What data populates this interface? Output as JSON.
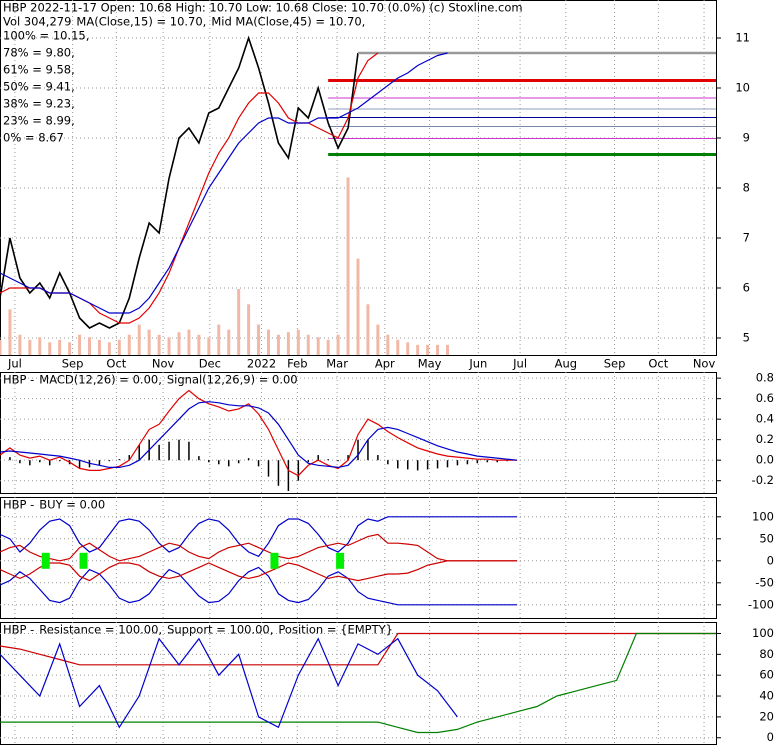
{
  "chart_data": [
    {
      "type": "line",
      "title": "HBP  2022-11-17 Open: 10.68  High: 10.70  Low: 10.68  Close: 10.70 (0.0%)  (c) Stoxline.com",
      "volume_label": "Vol 304,279",
      "xlim": [
        0,
        72
      ],
      "xticks": [
        {
          "value": 1.5,
          "label": "Jul"
        },
        {
          "value": 7.3,
          "label": "Sep"
        },
        {
          "value": 11.7,
          "label": "Oct"
        },
        {
          "value": 16.4,
          "label": "Nov"
        },
        {
          "value": 21.1,
          "label": "Dec"
        },
        {
          "value": 26.3,
          "label": "2022"
        },
        {
          "value": 29.9,
          "label": "Feb"
        },
        {
          "value": 33.9,
          "label": "Mar"
        },
        {
          "value": 38.7,
          "label": "Apr"
        },
        {
          "value": 43.2,
          "label": "May"
        },
        {
          "value": 48.1,
          "label": "Jun"
        },
        {
          "value": 52.3,
          "label": "Jul"
        },
        {
          "value": 56.9,
          "label": "Aug"
        },
        {
          "value": 61.8,
          "label": "Sep"
        },
        {
          "value": 66.2,
          "label": "Oct"
        },
        {
          "value": 70.8,
          "label": "Nov"
        }
      ],
      "ylim": [
        4.66,
        11.76
      ],
      "yticks": [
        5,
        6,
        7,
        8,
        9,
        10,
        11
      ],
      "grid": true,
      "x": [
        0,
        1,
        2,
        3,
        4,
        5,
        6,
        7,
        8,
        9,
        10,
        11,
        12,
        13,
        14,
        15,
        16,
        17,
        18,
        19,
        20,
        21,
        22,
        23,
        24,
        25,
        26,
        27,
        28,
        29,
        30,
        31,
        32,
        33,
        34,
        35,
        36,
        37,
        38,
        39,
        40,
        41,
        42,
        43,
        44,
        45
      ],
      "series": [
        {
          "color": "#000000",
          "values": [
            5.8,
            7.0,
            6.2,
            5.9,
            6.1,
            5.8,
            6.3,
            5.9,
            5.4,
            5.2,
            5.3,
            5.2,
            5.3,
            5.8,
            6.6,
            7.3,
            7.1,
            8.2,
            9.0,
            9.2,
            8.9,
            9.5,
            9.6,
            10.0,
            10.4,
            11.0,
            10.4,
            9.7,
            8.9,
            8.6,
            9.6,
            9.4,
            10.0,
            9.3,
            8.8,
            9.2,
            10.7,
            null,
            null,
            null,
            null,
            null,
            null,
            null,
            null,
            null
          ]
        },
        {
          "name": "MA(Close,15) = 10.70,",
          "color": "#e00000",
          "values": [
            5.9,
            6.0,
            6.0,
            6.0,
            6.0,
            5.9,
            5.9,
            5.9,
            5.8,
            5.7,
            5.5,
            5.4,
            5.3,
            5.3,
            5.4,
            5.6,
            5.9,
            6.3,
            6.8,
            7.3,
            7.8,
            8.3,
            8.7,
            9.0,
            9.4,
            9.7,
            9.9,
            9.9,
            9.7,
            9.4,
            9.3,
            9.3,
            9.2,
            9.1,
            9.0,
            9.4,
            10.2,
            10.55,
            10.7,
            null,
            null,
            null,
            null,
            null,
            null,
            null
          ]
        },
        {
          "name": "Mid MA(Close,45) = 10.70,",
          "color": "#0000cc",
          "values": [
            6.3,
            6.2,
            6.1,
            6.0,
            6.0,
            5.9,
            5.9,
            5.9,
            5.8,
            5.7,
            5.6,
            5.5,
            5.5,
            5.5,
            5.6,
            5.8,
            6.1,
            6.4,
            6.8,
            7.2,
            7.6,
            8.0,
            8.3,
            8.6,
            8.9,
            9.1,
            9.3,
            9.4,
            9.4,
            9.3,
            9.3,
            9.3,
            9.4,
            9.4,
            9.4,
            9.5,
            9.6,
            9.75,
            9.9,
            10.05,
            10.2,
            10.3,
            10.45,
            10.55,
            10.65,
            10.7
          ]
        }
      ],
      "volume": {
        "color": "#f2b8a6",
        "values": [
          300000,
          900000,
          400000,
          300000,
          350000,
          250000,
          300000,
          250000,
          400000,
          350000,
          300000,
          250000,
          300000,
          400000,
          600000,
          500000,
          400000,
          350000,
          450000,
          500000,
          400000,
          350000,
          600000,
          500000,
          1300000,
          1000000,
          600000,
          500000,
          400000,
          450000,
          500000,
          400000,
          350000,
          300000,
          400000,
          3500000,
          1900000,
          1000000,
          600000,
          400000,
          300000,
          250000,
          200000,
          200000,
          200000,
          200000
        ]
      },
      "levels": [
        {
          "label": "100% = 10.15,",
          "value": 10.15,
          "color": "#e00000"
        },
        {
          "label": "78% = 9.80,",
          "value": 9.8,
          "color": "#cc33cc"
        },
        {
          "label": "61% = 9.58,",
          "value": 9.58,
          "color": "#8f9fbf"
        },
        {
          "label": "50% = 9.41,",
          "value": 9.41,
          "color": "#000099"
        },
        {
          "label": "38% = 9.23,",
          "value": 9.23,
          "color": "#7a88aa"
        },
        {
          "label": "23% = 8.99,",
          "value": 8.99,
          "color": "#cc33cc"
        },
        {
          "label": "0% = 8.67",
          "value": 8.67,
          "color": "#008000"
        }
      ]
    },
    {
      "type": "line",
      "label": "HBP -",
      "xlim": [
        0,
        72
      ],
      "ylim": [
        -0.32,
        0.86
      ],
      "yticks": [
        -0.2,
        {
          "value": 0,
          "label": "0.0"
        },
        0.2,
        0.4,
        0.6,
        0.8
      ],
      "grid": true,
      "x": [
        0,
        1,
        2,
        3,
        4,
        5,
        6,
        7,
        8,
        9,
        10,
        11,
        12,
        13,
        14,
        15,
        16,
        17,
        18,
        19,
        20,
        21,
        22,
        23,
        24,
        25,
        26,
        27,
        28,
        29,
        30,
        31,
        32,
        33,
        34,
        35,
        36,
        37,
        38,
        39,
        40,
        41,
        42,
        43,
        44,
        45,
        46,
        47,
        48,
        49,
        50,
        51,
        52
      ],
      "histogram": {
        "color": "#000000",
        "values": [
          -0.03,
          0.03,
          -0.03,
          -0.05,
          -0.02,
          -0.05,
          -0.01,
          -0.04,
          -0.08,
          -0.07,
          -0.05,
          -0.01,
          0.01,
          0.05,
          0.15,
          0.2,
          0.15,
          0.18,
          0.2,
          0.18,
          0.04,
          -0.02,
          -0.04,
          -0.06,
          -0.03,
          0.02,
          -0.06,
          -0.16,
          -0.25,
          -0.3,
          -0.2,
          -0.02,
          0.05,
          0.01,
          -0.01,
          0.05,
          0.2,
          0.2,
          0.05,
          -0.04,
          -0.08,
          -0.09,
          -0.1,
          -0.09,
          -0.08,
          -0.07,
          -0.05,
          -0.04,
          -0.03,
          -0.02,
          -0.02,
          -0.01,
          0.0
        ]
      },
      "series": [
        {
          "name": "MACD(12,26) = 0.00,",
          "color": "#e00000",
          "values": [
            0.05,
            0.12,
            0.05,
            0.02,
            0.04,
            0.0,
            0.03,
            -0.02,
            -0.08,
            -0.1,
            -0.1,
            -0.08,
            -0.06,
            0.0,
            0.15,
            0.3,
            0.35,
            0.48,
            0.6,
            0.68,
            0.6,
            0.55,
            0.52,
            0.48,
            0.5,
            0.55,
            0.45,
            0.3,
            0.1,
            -0.1,
            -0.15,
            -0.05,
            0.0,
            -0.05,
            -0.08,
            0.0,
            0.25,
            0.4,
            0.35,
            0.28,
            0.22,
            0.17,
            0.12,
            0.09,
            0.06,
            0.04,
            0.03,
            0.02,
            0.01,
            0.01,
            0.0,
            0.0,
            0.0
          ]
        },
        {
          "name": "Signal(12,26,9) = 0.00",
          "color": "#0000cc",
          "values": [
            0.08,
            0.09,
            0.08,
            0.07,
            0.06,
            0.05,
            0.04,
            0.02,
            0.0,
            -0.03,
            -0.05,
            -0.07,
            -0.07,
            -0.05,
            0.0,
            0.1,
            0.2,
            0.3,
            0.4,
            0.5,
            0.56,
            0.57,
            0.56,
            0.54,
            0.53,
            0.53,
            0.51,
            0.46,
            0.35,
            0.2,
            0.05,
            -0.03,
            -0.05,
            -0.06,
            -0.07,
            -0.05,
            0.05,
            0.2,
            0.3,
            0.32,
            0.3,
            0.26,
            0.22,
            0.18,
            0.14,
            0.11,
            0.08,
            0.06,
            0.04,
            0.03,
            0.02,
            0.01,
            0.0
          ]
        }
      ]
    },
    {
      "type": "line",
      "label": "HBP -",
      "title": "BUY = 0.00",
      "title_color": "#00a000",
      "xlim": [
        0,
        72
      ],
      "ylim": [
        -130,
        145
      ],
      "yticks": [
        -100,
        -50,
        0,
        50,
        100
      ],
      "grid": true,
      "x": [
        0,
        1,
        2,
        3,
        4,
        5,
        6,
        7,
        8,
        9,
        10,
        11,
        12,
        13,
        14,
        15,
        16,
        17,
        18,
        19,
        20,
        21,
        22,
        23,
        24,
        25,
        26,
        27,
        28,
        29,
        30,
        31,
        32,
        33,
        34,
        35,
        36,
        37,
        38,
        39,
        40,
        41,
        42,
        43,
        44,
        45,
        46,
        47,
        48,
        49,
        50,
        51,
        52
      ],
      "series": [
        {
          "color": "#0000cc",
          "values": [
            60,
            50,
            20,
            40,
            70,
            90,
            95,
            80,
            40,
            20,
            30,
            60,
            90,
            95,
            90,
            70,
            40,
            20,
            30,
            60,
            85,
            95,
            90,
            70,
            40,
            20,
            10,
            40,
            80,
            95,
            95,
            85,
            60,
            30,
            20,
            40,
            80,
            95,
            90,
            100,
            100,
            100,
            100,
            100,
            100,
            100,
            100,
            100,
            100,
            100,
            100,
            100,
            100
          ]
        },
        {
          "color": "#0000cc",
          "values": [
            -55,
            -45,
            -25,
            -40,
            -65,
            -90,
            -95,
            -85,
            -45,
            -20,
            -30,
            -55,
            -85,
            -95,
            -90,
            -75,
            -45,
            -20,
            -30,
            -55,
            -80,
            -95,
            -92,
            -75,
            -45,
            -25,
            -15,
            -35,
            -75,
            -90,
            -95,
            -88,
            -65,
            -35,
            -25,
            -40,
            -70,
            -85,
            -90,
            -95,
            -100,
            -100,
            -100,
            -100,
            -100,
            -100,
            -100,
            -100,
            -100,
            -100,
            -100,
            -100,
            -100
          ]
        },
        {
          "color": "#cc0000",
          "values": [
            20,
            30,
            35,
            20,
            10,
            5,
            0,
            5,
            30,
            40,
            25,
            10,
            0,
            5,
            10,
            20,
            30,
            40,
            35,
            20,
            10,
            5,
            20,
            30,
            35,
            40,
            30,
            20,
            10,
            5,
            10,
            20,
            30,
            35,
            40,
            35,
            45,
            55,
            60,
            40,
            40,
            38,
            35,
            20,
            5,
            0,
            0,
            0,
            0,
            0,
            0,
            0,
            0
          ]
        },
        {
          "color": "#cc0000",
          "values": [
            -20,
            -30,
            -40,
            -30,
            -15,
            -5,
            -5,
            -10,
            -35,
            -45,
            -30,
            -15,
            -5,
            -5,
            -10,
            -25,
            -35,
            -40,
            -35,
            -25,
            -15,
            -5,
            -15,
            -25,
            -35,
            -40,
            -35,
            -25,
            -15,
            -5,
            -10,
            -20,
            -30,
            -40,
            -35,
            -40,
            -45,
            -40,
            -35,
            -30,
            -30,
            -28,
            -20,
            -10,
            -5,
            0,
            0,
            0,
            0,
            0,
            0,
            0,
            0
          ]
        }
      ],
      "signals": {
        "color": "#00ee00",
        "x": [
          4.6,
          8.4,
          27.6,
          34.2
        ]
      }
    },
    {
      "type": "line",
      "label": "HBP -",
      "xlim": [
        0,
        72
      ],
      "ylim": [
        -6,
        111
      ],
      "yticks": [
        0,
        20,
        40,
        60,
        80,
        100
      ],
      "grid": true,
      "x": [
        0,
        2,
        4,
        6,
        8,
        10,
        12,
        14,
        16,
        18,
        20,
        22,
        24,
        26,
        28,
        30,
        32,
        34,
        36,
        38,
        40,
        42,
        44,
        46,
        48,
        50,
        52,
        54,
        56,
        58,
        60,
        62,
        64,
        66,
        68,
        70,
        72
      ],
      "series": [
        {
          "name": "Resistance = 100.00,",
          "color": "#cc0000",
          "values": [
            88,
            85,
            80,
            75,
            70,
            70,
            70,
            70,
            70,
            70,
            70,
            70,
            70,
            70,
            70,
            70,
            70,
            70,
            70,
            70,
            100,
            100,
            100,
            100,
            100,
            100,
            100,
            100,
            100,
            100,
            100,
            100,
            100,
            100,
            100,
            100,
            100
          ]
        },
        {
          "name": "Support = 100.00,",
          "color": "#008000",
          "values": [
            15,
            15,
            15,
            15,
            15,
            15,
            15,
            15,
            15,
            15,
            15,
            15,
            15,
            15,
            15,
            15,
            15,
            15,
            15,
            15,
            10,
            5,
            5,
            8,
            15,
            20,
            25,
            30,
            40,
            45,
            50,
            55,
            100,
            100,
            100,
            100,
            100
          ]
        },
        {
          "name": "Position = {EMPTY}",
          "color": "#0000cc",
          "values": [
            80,
            60,
            40,
            90,
            30,
            50,
            10,
            40,
            95,
            70,
            95,
            60,
            80,
            20,
            10,
            60,
            95,
            50,
            90,
            80,
            95,
            60,
            45,
            20,
            null,
            null,
            null,
            null,
            null,
            null,
            null,
            null,
            null,
            null,
            null,
            null,
            null
          ]
        }
      ]
    }
  ]
}
